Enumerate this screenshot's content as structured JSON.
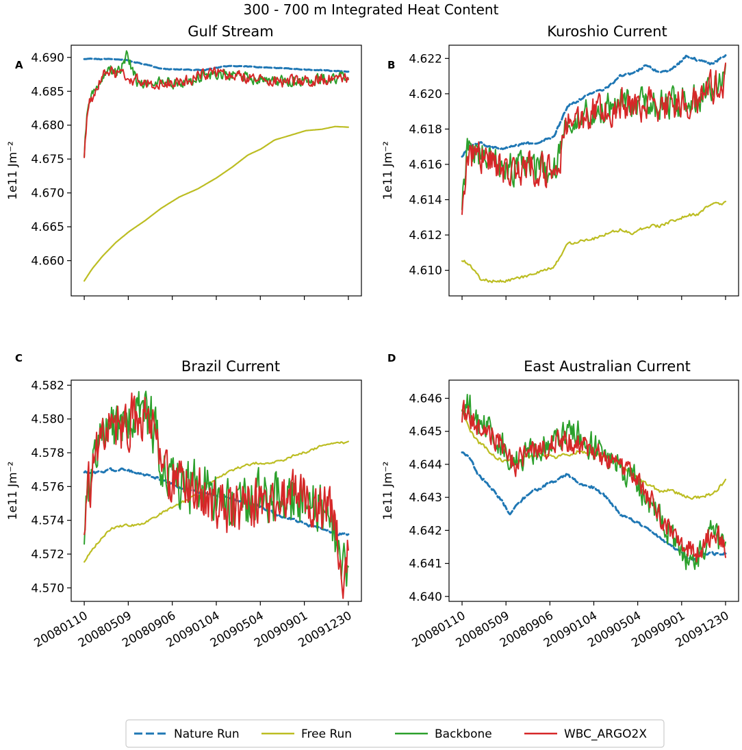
{
  "figure_title": "300 - 700 m Integrated Heat Content",
  "colors": {
    "Nature Run": "#1f77b4",
    "Free Run": "#bcbd22",
    "Backbone": "#2ca02c",
    "WBC_ARGO2X": "#d62728"
  },
  "legend": {
    "items": [
      {
        "label": "Nature Run",
        "style": "dashed",
        "color": "#1f77b4"
      },
      {
        "label": "Free Run",
        "style": "solid",
        "color": "#bcbd22"
      },
      {
        "label": "Backbone",
        "style": "solid",
        "color": "#2ca02c"
      },
      {
        "label": "WBC_ARGO2X",
        "style": "solid",
        "color": "#d62728"
      }
    ]
  },
  "chart_data": [
    {
      "panel": "A",
      "type": "line",
      "title": "Gulf Stream",
      "ylabel": "1e11 Jm⁻²",
      "x_ticklabels": [
        "20080110",
        "20080509",
        "20080906",
        "20090104",
        "20090504",
        "20090901",
        "20091230"
      ],
      "show_x_ticklabels": false,
      "ylim": [
        4.6548,
        4.6918
      ],
      "yticks": [
        4.66,
        4.665,
        4.67,
        4.675,
        4.68,
        4.685,
        4.69
      ],
      "yticklabels": [
        "4.660",
        "4.665",
        "4.670",
        "4.675",
        "4.680",
        "4.685",
        "4.690"
      ],
      "series": [
        {
          "name": "Free Run",
          "x": [
            0,
            0.03,
            0.07,
            0.12,
            0.17,
            0.23,
            0.29,
            0.36,
            0.43,
            0.5,
            0.56,
            0.62,
            0.67,
            0.72,
            0.78,
            0.84,
            0.9,
            0.95,
            1.0
          ],
          "y": [
            4.657,
            4.6588,
            4.6607,
            4.6627,
            4.6643,
            4.6659,
            4.6677,
            4.6694,
            4.6706,
            4.6722,
            4.6738,
            4.6756,
            4.6765,
            4.6778,
            4.6785,
            4.6792,
            4.6794,
            4.6798,
            4.6797
          ],
          "noise": 0
        },
        {
          "name": "Nature Run",
          "x": [
            0,
            0.15,
            0.3,
            0.45,
            0.55,
            0.7,
            0.85,
            1.0
          ],
          "y": [
            4.6898,
            4.6897,
            4.6883,
            4.6881,
            4.6888,
            4.6885,
            4.6882,
            4.6879
          ],
          "noise": 8e-05
        },
        {
          "name": "Backbone",
          "x": [
            0,
            0.01,
            0.02,
            0.04,
            0.06,
            0.08,
            0.1,
            0.14,
            0.16,
            0.2,
            0.25,
            0.3,
            0.35,
            0.4,
            0.45,
            0.5,
            0.6,
            0.7,
            0.8,
            0.9,
            1.0
          ],
          "y": [
            4.676,
            4.6815,
            4.6835,
            4.6848,
            4.686,
            4.6878,
            4.688,
            4.6882,
            4.6905,
            4.6863,
            4.6862,
            4.6865,
            4.686,
            4.6865,
            4.6875,
            4.6876,
            4.6872,
            4.6865,
            4.6865,
            4.6868,
            4.6873
          ],
          "noise": 0.0011
        },
        {
          "name": "WBC_ARGO2X",
          "x": [
            0,
            0.01,
            0.02,
            0.04,
            0.06,
            0.08,
            0.1,
            0.15,
            0.2,
            0.25,
            0.3,
            0.35,
            0.4,
            0.45,
            0.5,
            0.6,
            0.7,
            0.8,
            0.9,
            1.0
          ],
          "y": [
            4.676,
            4.6812,
            4.6833,
            4.6845,
            4.6862,
            4.6878,
            4.6878,
            4.6873,
            4.6866,
            4.6862,
            4.6862,
            4.6862,
            4.6865,
            4.6875,
            4.6876,
            4.6872,
            4.6865,
            4.6865,
            4.6868,
            4.6868
          ],
          "noise": 0.0012
        }
      ]
    },
    {
      "panel": "B",
      "type": "line",
      "title": "Kuroshio Current",
      "ylabel": "1e11 Jm⁻²",
      "x_ticklabels": [
        "20080110",
        "20080509",
        "20080906",
        "20090104",
        "20090504",
        "20090901",
        "20091230"
      ],
      "show_x_ticklabels": false,
      "ylim": [
        4.60855,
        4.62275
      ],
      "yticks": [
        4.61,
        4.612,
        4.614,
        4.616,
        4.618,
        4.62,
        4.622
      ],
      "yticklabels": [
        "4.610",
        "4.612",
        "4.614",
        "4.616",
        "4.618",
        "4.620",
        "4.622"
      ],
      "series": [
        {
          "name": "Free Run",
          "x": [
            0,
            0.03,
            0.07,
            0.1,
            0.15,
            0.2,
            0.25,
            0.3,
            0.35,
            0.4,
            0.45,
            0.5,
            0.55,
            0.6,
            0.65,
            0.7,
            0.75,
            0.8,
            0.85,
            0.9,
            0.95,
            1.0
          ],
          "y": [
            4.6106,
            4.6103,
            4.6095,
            4.6094,
            4.6094,
            4.6095,
            4.6097,
            4.6099,
            4.6102,
            4.6115,
            4.6117,
            4.6118,
            4.6121,
            4.6123,
            4.6121,
            4.6125,
            4.6125,
            4.6128,
            4.6131,
            4.6132,
            4.6138,
            4.6138
          ],
          "noise": 0.00012
        },
        {
          "name": "Nature Run",
          "x": [
            0,
            0.03,
            0.07,
            0.1,
            0.15,
            0.2,
            0.25,
            0.3,
            0.35,
            0.4,
            0.45,
            0.5,
            0.55,
            0.6,
            0.65,
            0.7,
            0.75,
            0.8,
            0.85,
            0.9,
            0.95,
            1.0
          ],
          "y": [
            4.6165,
            4.6171,
            4.6172,
            4.617,
            4.6169,
            4.6171,
            4.6172,
            4.6173,
            4.6176,
            4.6193,
            4.6197,
            4.6201,
            4.6203,
            4.621,
            4.6212,
            4.6216,
            4.6212,
            4.6214,
            4.6221,
            4.6219,
            4.6217,
            4.6222
          ],
          "noise": 0.0001
        },
        {
          "name": "Backbone",
          "x": [
            0,
            0.02,
            0.05,
            0.1,
            0.15,
            0.2,
            0.25,
            0.3,
            0.35,
            0.38,
            0.4,
            0.45,
            0.5,
            0.55,
            0.6,
            0.7,
            0.8,
            0.9,
            0.95,
            1.0
          ],
          "y": [
            4.6142,
            4.6168,
            4.6167,
            4.6164,
            4.616,
            4.6158,
            4.616,
            4.6157,
            4.6156,
            4.6172,
            4.6185,
            4.6188,
            4.619,
            4.6192,
            4.6196,
            4.6194,
            4.6195,
            4.6197,
            4.6205,
            4.621
          ],
          "noise": 0.0012
        },
        {
          "name": "WBC_ARGO2X",
          "x": [
            0,
            0.02,
            0.05,
            0.1,
            0.15,
            0.2,
            0.25,
            0.3,
            0.35,
            0.38,
            0.4,
            0.45,
            0.5,
            0.55,
            0.6,
            0.7,
            0.8,
            0.9,
            0.95,
            1.0
          ],
          "y": [
            4.614,
            4.6165,
            4.6165,
            4.6163,
            4.6158,
            4.6156,
            4.6158,
            4.6157,
            4.6155,
            4.617,
            4.6182,
            4.6187,
            4.619,
            4.619,
            4.6195,
            4.6193,
            4.6193,
            4.6195,
            4.6204,
            4.6208
          ],
          "noise": 0.0013
        }
      ]
    },
    {
      "panel": "C",
      "type": "line",
      "title": "Brazil Current",
      "ylabel": "1e11 Jm⁻²",
      "x_ticklabels": [
        "20080110",
        "20080509",
        "20080906",
        "20090104",
        "20090504",
        "20090901",
        "20091230"
      ],
      "show_x_ticklabels": true,
      "ylim": [
        4.5692,
        4.5823
      ],
      "yticks": [
        4.57,
        4.572,
        4.574,
        4.576,
        4.578,
        4.58,
        4.582
      ],
      "yticklabels": [
        "4.570",
        "4.572",
        "4.574",
        "4.576",
        "4.578",
        "4.580",
        "4.582"
      ],
      "series": [
        {
          "name": "Free Run",
          "x": [
            0,
            0.03,
            0.07,
            0.1,
            0.15,
            0.2,
            0.25,
            0.3,
            0.35,
            0.4,
            0.45,
            0.5,
            0.55,
            0.6,
            0.65,
            0.7,
            0.75,
            0.8,
            0.85,
            0.9,
            0.95,
            1.0
          ],
          "y": [
            4.5716,
            4.5723,
            4.573,
            4.5735,
            4.5737,
            4.5737,
            4.574,
            4.5745,
            4.5749,
            4.5753,
            4.5759,
            4.5765,
            4.5769,
            4.5772,
            4.5774,
            4.5774,
            4.5775,
            4.5779,
            4.5781,
            4.5784,
            4.5786,
            4.5786
          ],
          "noise": 0.0001
        },
        {
          "name": "Nature Run",
          "x": [
            0,
            0.05,
            0.1,
            0.15,
            0.2,
            0.25,
            0.3,
            0.35,
            0.4,
            0.45,
            0.5,
            0.55,
            0.6,
            0.65,
            0.7,
            0.75,
            0.8,
            0.85,
            0.9,
            0.95,
            1.0
          ],
          "y": [
            4.5769,
            4.5768,
            4.577,
            4.577,
            4.5768,
            4.5766,
            4.5764,
            4.576,
            4.5758,
            4.5756,
            4.5755,
            4.5753,
            4.5751,
            4.5749,
            4.5746,
            4.5742,
            4.574,
            4.5737,
            4.5735,
            4.5732,
            4.5732
          ],
          "noise": 0.0001
        },
        {
          "name": "Backbone",
          "x": [
            0,
            0.03,
            0.06,
            0.1,
            0.15,
            0.2,
            0.25,
            0.3,
            0.35,
            0.4,
            0.45,
            0.5,
            0.55,
            0.6,
            0.65,
            0.7,
            0.75,
            0.8,
            0.85,
            0.9,
            0.93,
            0.96,
            0.98,
            1.0
          ],
          "y": [
            4.574,
            4.577,
            4.579,
            4.5795,
            4.5797,
            4.5805,
            4.58,
            4.5775,
            4.5762,
            4.576,
            4.5758,
            4.5752,
            4.5747,
            4.575,
            4.5752,
            4.5752,
            4.5752,
            4.5755,
            4.5752,
            4.5748,
            4.5745,
            4.5725,
            4.5705,
            4.5715
          ],
          "noise": 0.0022
        },
        {
          "name": "WBC_ARGO2X",
          "x": [
            0,
            0.03,
            0.06,
            0.1,
            0.15,
            0.2,
            0.25,
            0.3,
            0.35,
            0.4,
            0.45,
            0.5,
            0.55,
            0.6,
            0.65,
            0.7,
            0.75,
            0.8,
            0.85,
            0.9,
            0.93,
            0.96,
            0.98,
            1.0
          ],
          "y": [
            4.5745,
            4.5768,
            4.5788,
            4.5795,
            4.5795,
            4.5803,
            4.5797,
            4.577,
            4.576,
            4.5758,
            4.5756,
            4.5752,
            4.5745,
            4.5748,
            4.575,
            4.575,
            4.5752,
            4.5755,
            4.5752,
            4.5748,
            4.5745,
            4.5728,
            4.5712,
            4.572
          ],
          "noise": 0.0021
        }
      ]
    },
    {
      "panel": "D",
      "type": "line",
      "title": "East Australian Current",
      "ylabel": "1e11 Jm⁻²",
      "x_ticklabels": [
        "20080110",
        "20080509",
        "20080906",
        "20090104",
        "20090504",
        "20090901",
        "20091230"
      ],
      "show_x_ticklabels": true,
      "ylim": [
        4.63985,
        4.64655
      ],
      "yticks": [
        4.64,
        4.641,
        4.642,
        4.643,
        4.644,
        4.645,
        4.646
      ],
      "yticklabels": [
        "4.640",
        "4.641",
        "4.642",
        "4.643",
        "4.644",
        "4.645",
        "4.646"
      ],
      "series": [
        {
          "name": "Free Run",
          "x": [
            0,
            0.03,
            0.06,
            0.1,
            0.15,
            0.2,
            0.25,
            0.3,
            0.35,
            0.4,
            0.45,
            0.5,
            0.55,
            0.6,
            0.65,
            0.7,
            0.75,
            0.8,
            0.85,
            0.9,
            0.95,
            1.0
          ],
          "y": [
            4.6457,
            4.645,
            4.6447,
            4.6444,
            4.6441,
            4.6441,
            4.6442,
            4.6443,
            4.6442,
            4.6443,
            4.6444,
            4.6443,
            4.6442,
            4.644,
            4.6437,
            4.6434,
            4.6432,
            4.6432,
            4.643,
            4.643,
            4.6431,
            4.6435
          ],
          "noise": 8e-05
        },
        {
          "name": "Nature Run",
          "x": [
            0,
            0.03,
            0.06,
            0.1,
            0.15,
            0.18,
            0.2,
            0.25,
            0.3,
            0.35,
            0.4,
            0.45,
            0.5,
            0.55,
            0.6,
            0.65,
            0.7,
            0.75,
            0.8,
            0.85,
            0.88,
            0.9,
            0.95,
            1.0
          ],
          "y": [
            4.6444,
            4.6442,
            4.6437,
            4.6434,
            4.6429,
            4.6425,
            4.6427,
            4.6431,
            4.6433,
            4.6435,
            4.6437,
            4.6434,
            4.6433,
            4.643,
            4.6425,
            4.6423,
            4.6421,
            4.6418,
            4.6415,
            4.6412,
            4.6411,
            4.6413,
            4.6413,
            4.6413
          ],
          "noise": 6e-05
        },
        {
          "name": "Backbone",
          "x": [
            0,
            0.03,
            0.06,
            0.1,
            0.15,
            0.2,
            0.25,
            0.3,
            0.35,
            0.4,
            0.45,
            0.5,
            0.55,
            0.6,
            0.65,
            0.7,
            0.75,
            0.8,
            0.85,
            0.9,
            0.95,
            1.0
          ],
          "y": [
            4.646,
            4.6457,
            4.6452,
            4.6451,
            4.6447,
            4.644,
            4.6443,
            4.6445,
            4.6447,
            4.6449,
            4.6449,
            4.6445,
            4.6442,
            4.644,
            4.6436,
            4.643,
            4.6424,
            4.6417,
            4.6411,
            4.6412,
            4.642,
            4.6412
          ],
          "noise": 0.0006
        },
        {
          "name": "WBC_ARGO2X",
          "x": [
            0,
            0.03,
            0.06,
            0.1,
            0.15,
            0.2,
            0.25,
            0.3,
            0.35,
            0.4,
            0.45,
            0.5,
            0.55,
            0.6,
            0.65,
            0.7,
            0.75,
            0.8,
            0.85,
            0.9,
            0.95,
            1.0
          ],
          "y": [
            4.6456,
            4.6455,
            4.645,
            4.645,
            4.6446,
            4.644,
            4.6443,
            4.6445,
            4.6446,
            4.6447,
            4.6446,
            4.6444,
            4.6441,
            4.6439,
            4.6436,
            4.6431,
            4.6425,
            4.6418,
            4.6414,
            4.6414,
            4.6419,
            4.6416
          ],
          "noise": 0.0005
        }
      ]
    }
  ]
}
